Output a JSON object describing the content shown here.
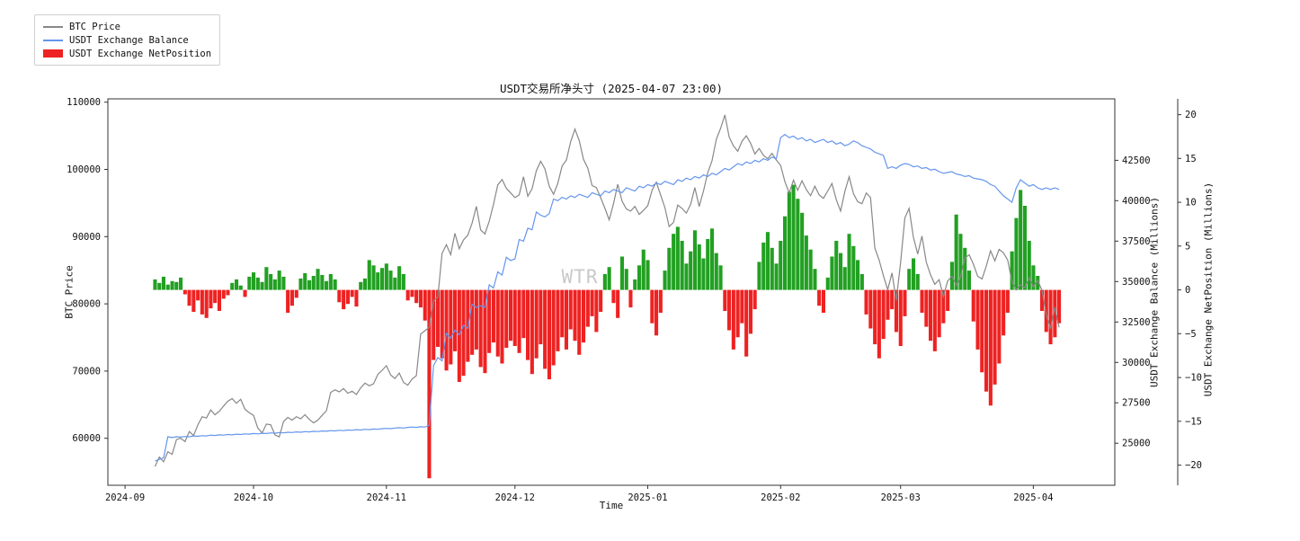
{
  "title": "USDT交易所净头寸 (2025-04-07 23:00)",
  "watermark": "WTR",
  "legend": [
    {
      "label": "BTC Price",
      "type": "line",
      "color": "#888888"
    },
    {
      "label": "USDT Exchange Balance",
      "type": "line",
      "color": "#6495ed"
    },
    {
      "label": "USDT Exchange NetPosition",
      "type": "bar",
      "color": "#ee2222"
    }
  ],
  "chart_data": {
    "type": "mixed",
    "title": "USDT交易所净头寸 (2025-04-07 23:00)",
    "xlabel": "Time",
    "x_unit": "days since 2024-09-01",
    "xlim": [
      -4,
      231
    ],
    "x_ticks": [
      {
        "day": 0,
        "label": "2024-09"
      },
      {
        "day": 30,
        "label": "2024-10"
      },
      {
        "day": 61,
        "label": "2024-11"
      },
      {
        "day": 91,
        "label": "2024-12"
      },
      {
        "day": 122,
        "label": "2025-01"
      },
      {
        "day": 153,
        "label": "2025-02"
      },
      {
        "day": 181,
        "label": "2025-03"
      },
      {
        "day": 212,
        "label": "2025-04"
      }
    ],
    "axes": {
      "left": {
        "label": "BTC Price",
        "lim": [
          53000,
          110500
        ],
        "ticks": [
          60000,
          70000,
          80000,
          90000,
          100000,
          110000
        ]
      },
      "right_balance": {
        "label": "USDT Exchange Balance (Millions)",
        "lim": [
          22400,
          46300
        ],
        "ticks": [
          25000,
          27500,
          30000,
          32500,
          35000,
          37500,
          40000,
          42500
        ]
      },
      "right_netposition": {
        "label": "USDT Exchange NetPosition (Millions)",
        "lim": [
          -22.3,
          21.8
        ],
        "ticks": [
          -20,
          -15,
          -10,
          -5,
          0,
          5,
          10,
          15,
          20
        ]
      }
    },
    "series": [
      {
        "name": "USDT Exchange NetPosition",
        "type": "bar",
        "axis": "right_netposition",
        "color_positive": "#22a022",
        "color_negative": "#ee2222",
        "start_day": 7,
        "values": [
          1.2,
          0.8,
          1.5,
          0.6,
          1.0,
          0.9,
          1.4,
          -0.5,
          -1.8,
          -2.5,
          -1.2,
          -2.8,
          -3.2,
          -2.1,
          -1.5,
          -2.4,
          -1.0,
          -0.6,
          0.8,
          1.2,
          0.5,
          -0.8,
          1.5,
          2.0,
          1.4,
          0.9,
          2.6,
          1.8,
          1.2,
          2.2,
          1.5,
          -2.6,
          -1.8,
          -0.9,
          1.3,
          1.9,
          1.1,
          1.6,
          2.4,
          1.7,
          1.0,
          1.8,
          1.2,
          -1.4,
          -2.2,
          -1.6,
          -0.8,
          -1.9,
          0.9,
          1.3,
          3.4,
          2.8,
          2.0,
          2.5,
          3.0,
          2.2,
          1.4,
          2.7,
          1.8,
          -1.2,
          -0.8,
          -1.5,
          -2.0,
          -3.5,
          -21.5,
          -8.0,
          -6.5,
          -7.8,
          -9.2,
          -8.5,
          -7.0,
          -10.5,
          -9.8,
          -8.2,
          -7.4,
          -6.8,
          -8.8,
          -9.5,
          -7.2,
          -6.0,
          -7.6,
          -8.4,
          -6.6,
          -5.8,
          -6.4,
          -7.2,
          -5.5,
          -8.0,
          -9.6,
          -7.8,
          -6.2,
          -9.0,
          -10.2,
          -8.6,
          -7.0,
          -5.4,
          -6.8,
          -4.5,
          -5.8,
          -7.4,
          -6.0,
          -4.2,
          -3.0,
          -4.8,
          -2.5,
          1.8,
          2.6,
          -1.5,
          -3.2,
          3.8,
          2.4,
          -2.0,
          1.2,
          2.8,
          4.6,
          3.4,
          -3.8,
          -5.2,
          -2.6,
          2.2,
          4.8,
          6.4,
          7.2,
          5.6,
          3.0,
          4.4,
          6.8,
          5.2,
          3.6,
          5.8,
          7.0,
          4.2,
          2.8,
          -2.4,
          -4.6,
          -6.8,
          -5.4,
          -3.8,
          -7.6,
          -5.0,
          -2.2,
          3.2,
          5.4,
          6.6,
          4.8,
          3.0,
          5.6,
          8.4,
          11.2,
          12.0,
          10.4,
          8.8,
          6.2,
          4.6,
          2.4,
          -1.8,
          -2.6,
          1.4,
          3.8,
          5.6,
          4.2,
          2.6,
          6.4,
          5.0,
          3.4,
          1.8,
          -2.8,
          -4.4,
          -6.2,
          -7.8,
          -5.6,
          -3.4,
          -2.2,
          -4.8,
          -6.4,
          -3.0,
          2.4,
          3.6,
          1.8,
          -2.6,
          -4.2,
          -5.8,
          -7.0,
          -5.4,
          -3.8,
          -2.4,
          3.2,
          8.6,
          6.4,
          4.8,
          2.2,
          -3.6,
          -6.8,
          -9.4,
          -11.6,
          -13.2,
          -10.8,
          -8.4,
          -5.2,
          -2.6,
          4.4,
          8.2,
          11.4,
          9.6,
          5.6,
          2.8,
          1.6,
          -2.4,
          -4.8,
          -6.2,
          -5.4,
          -3.8
        ]
      },
      {
        "name": "BTC Price",
        "type": "line",
        "axis": "left",
        "color": "#888888",
        "start_day": 7,
        "values": [
          55800,
          57200,
          56500,
          58000,
          57600,
          59800,
          60000,
          59500,
          61000,
          60400,
          62000,
          63200,
          63000,
          64200,
          63500,
          64000,
          64800,
          65500,
          65900,
          65200,
          65800,
          64300,
          63800,
          63400,
          61500,
          60800,
          62100,
          62000,
          60500,
          60200,
          62500,
          63100,
          62700,
          63200,
          62900,
          63500,
          62800,
          62300,
          62700,
          63400,
          64100,
          66800,
          67200,
          66900,
          67400,
          66700,
          67000,
          66500,
          67500,
          68200,
          67800,
          68100,
          69500,
          70100,
          70800,
          69400,
          68900,
          69700,
          68300,
          67900,
          68800,
          69300,
          75500,
          76000,
          76500,
          80400,
          81000,
          87500,
          88800,
          87300,
          90500,
          88200,
          89500,
          90200,
          92000,
          94500,
          91000,
          90400,
          92300,
          94800,
          97700,
          98500,
          97200,
          96500,
          95800,
          96200,
          98900,
          96000,
          97100,
          99800,
          101200,
          100100,
          97500,
          96300,
          97900,
          100500,
          101400,
          104100,
          106000,
          104300,
          101500,
          100200,
          97600,
          97300,
          95800,
          94200,
          92500,
          94900,
          97800,
          95300,
          94100,
          93800,
          94500,
          93300,
          93900,
          94600,
          96900,
          98100,
          96200,
          94300,
          91500,
          92100,
          94700,
          94200,
          93500,
          94800,
          97300,
          94500,
          96800,
          99500,
          101300,
          104500,
          106100,
          108100,
          104800,
          103500,
          102700,
          104200,
          105000,
          103900,
          102300,
          103100,
          102100,
          101600,
          102400,
          101400,
          100600,
          98200,
          96500,
          98400,
          96900,
          98300,
          97000,
          96100,
          97500,
          96200,
          95700,
          96800,
          97900,
          95500,
          93800,
          96700,
          98900,
          96400,
          95200,
          94900,
          96500,
          95800,
          88300,
          86500,
          84200,
          82100,
          84600,
          80500,
          86100,
          92800,
          94200,
          89900,
          87400,
          90100,
          86200,
          84300,
          82900,
          83600,
          81100,
          83400,
          84100,
          82700,
          84000,
          86800,
          87300,
          85900,
          84100,
          83700,
          85600,
          87900,
          86400,
          88100,
          87600,
          86500,
          83300,
          82100,
          82800,
          82400,
          83900,
          82500,
          83500,
          82000,
          78400,
          76300,
          79500,
          76500
        ]
      },
      {
        "name": "USDT Exchange Balance",
        "type": "line",
        "axis": "right_balance",
        "color": "#6495ed",
        "start_day": 7,
        "values": [
          23900,
          24000,
          24100,
          25400,
          25350,
          25400,
          25380,
          25420,
          25400,
          25450,
          25430,
          25470,
          25450,
          25500,
          25480,
          25520,
          25500,
          25540,
          25520,
          25560,
          25540,
          25580,
          25560,
          25600,
          25580,
          25620,
          25600,
          25640,
          25620,
          25660,
          25640,
          25680,
          25660,
          25700,
          25680,
          25720,
          25700,
          25740,
          25720,
          25760,
          25740,
          25780,
          25760,
          25800,
          25780,
          25820,
          25800,
          25840,
          25820,
          25860,
          25840,
          25880,
          25860,
          25900,
          25920,
          25900,
          25940,
          25960,
          25940,
          25980,
          26000,
          25980,
          26020,
          26000,
          26100,
          29800,
          30300,
          30100,
          31800,
          31500,
          32000,
          31700,
          32300,
          32100,
          33600,
          33400,
          33500,
          33400,
          34800,
          34600,
          35600,
          35400,
          36500,
          36300,
          36400,
          37600,
          37500,
          38300,
          38200,
          39300,
          39100,
          39000,
          39200,
          40100,
          40000,
          40200,
          40100,
          40300,
          40200,
          40400,
          40300,
          40200,
          40500,
          40400,
          40300,
          40600,
          40500,
          40700,
          40600,
          40500,
          40800,
          40700,
          40600,
          40900,
          40800,
          41000,
          40900,
          41100,
          41000,
          41200,
          41100,
          41000,
          41300,
          41200,
          41400,
          41300,
          41500,
          41400,
          41600,
          41500,
          41700,
          41600,
          41800,
          42000,
          41900,
          42100,
          42300,
          42200,
          42400,
          42300,
          42500,
          42400,
          42600,
          42500,
          42700,
          42600,
          43900,
          44100,
          43900,
          44000,
          43800,
          43900,
          43700,
          43800,
          43600,
          43700,
          43800,
          43600,
          43700,
          43500,
          43600,
          43400,
          43500,
          43700,
          43600,
          43400,
          43300,
          43200,
          43000,
          42900,
          42800,
          42000,
          42100,
          42000,
          42200,
          42300,
          42250,
          42100,
          42150,
          42000,
          42050,
          41900,
          41950,
          41800,
          41700,
          41750,
          41800,
          41650,
          41600,
          41500,
          41550,
          41400,
          41350,
          41300,
          41200,
          41000,
          40900,
          40600,
          40300,
          40100,
          39900,
          40800,
          41300,
          41100,
          40900,
          41000,
          40800,
          40700,
          40800,
          40700,
          40800,
          40700
        ]
      }
    ]
  }
}
